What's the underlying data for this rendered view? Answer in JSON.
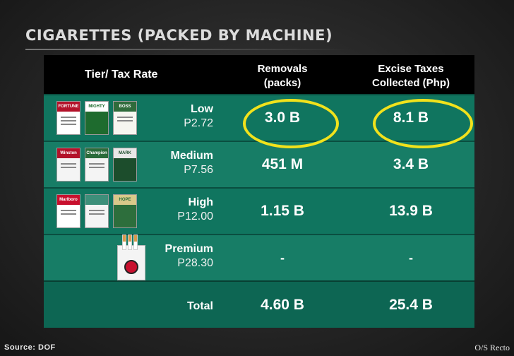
{
  "slide": {
    "title": "CIGARETTES (PACKED BY MACHINE)",
    "source": "Source: DOF",
    "credit": "O/S Recto"
  },
  "table": {
    "headers": {
      "tier": "Tier/ Tax Rate",
      "removals_l1": "Removals",
      "removals_l2": "(packs)",
      "excise_l1": "Excise Taxes",
      "excise_l2": "Collected (Php)"
    },
    "rows": [
      {
        "tier": "Low",
        "rate": "P2.72",
        "removals": "3.0 B",
        "excise": "8.1 B",
        "brands": [
          "FORTUNE",
          "MIGHTY",
          "BOSS"
        ]
      },
      {
        "tier": "Medium",
        "rate": "P7.56",
        "removals": "451 M",
        "excise": "3.4 B",
        "brands": [
          "Winston",
          "Champion",
          "MARK"
        ]
      },
      {
        "tier": "High",
        "rate": "P12.00",
        "removals": "1.15 B",
        "excise": "13.9 B",
        "brands": [
          "Marlboro",
          "",
          "HOPE"
        ]
      },
      {
        "tier": "Premium",
        "rate": "P28.30",
        "removals": "-",
        "excise": "-",
        "brands": []
      }
    ],
    "total": {
      "label": "Total",
      "removals": "4.60 B",
      "excise": "25.4 B"
    }
  },
  "colors": {
    "row_green": "#10755f",
    "header_black": "#000000",
    "highlight_yellow": "#f1e21c",
    "pack_red": "#c8102e",
    "pack_green": "#1e6b2e"
  }
}
